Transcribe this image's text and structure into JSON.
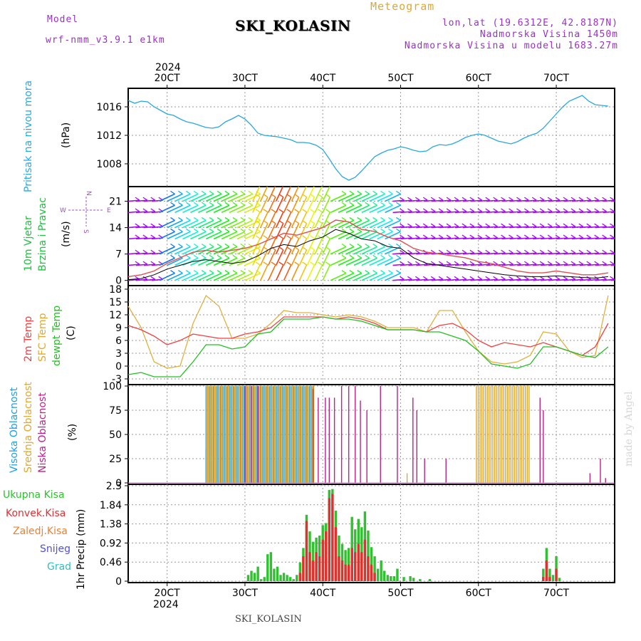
{
  "header": {
    "model_label": "Model",
    "model_name": "wrf-nmm_v3.9.1 e1km",
    "title": "SKI_KOLASIN",
    "meteogram": "Meteogram",
    "lonlat": "lon,lat (19.6312E, 42.8187N)",
    "elevation": "Nadmorska Visina 1450m",
    "model_elevation": "Nadmorska Visina u modelu 1683.27m"
  },
  "colors": {
    "pressure": "#29a8e0",
    "temp2m": "#f04040",
    "sfc": "#e0b040",
    "dew": "#20c020",
    "high_cloud": "#1ca0e8",
    "mid_cloud": "#e0a830",
    "low_cloud": "#c0208a",
    "precip_total": "#30c030",
    "precip_conv": "#e03030",
    "wind_speed": "#000000",
    "gust": "#e05050"
  },
  "footer": {
    "station": "SKI_KOLASIN",
    "credit": "made by Angel"
  },
  "x_axis": {
    "top_year": "2024",
    "bottom_year": "2024",
    "ticks": [
      {
        "hour": 6,
        "label": "20CT"
      },
      {
        "hour": 18,
        "label": "30CT"
      },
      {
        "hour": 30,
        "label": "40CT"
      },
      {
        "hour": 42,
        "label": "50CT"
      },
      {
        "hour": 54,
        "label": "60CT"
      },
      {
        "hour": 66,
        "label": "70CT"
      }
    ]
  },
  "panels": {
    "pressure": {
      "labels": [
        "Pritisak na nivou mora",
        "(hPa)"
      ]
    },
    "wind": {
      "labels": [
        "10m Vjetar",
        "Brzina i Pravac",
        "(m/s)"
      ],
      "compass": [
        "N",
        "E",
        "W",
        "S"
      ]
    },
    "temp": {
      "labels": [
        "2m Temp",
        "SFC Temp",
        "dewpt Temp",
        "(C)"
      ]
    },
    "cloud": {
      "labels": [
        "Visoka Oblacnost",
        "Srednja Oblacnost",
        "Niska Oblacnost",
        "(%)"
      ]
    },
    "precip": {
      "labels": [
        "Ukupna Kisa",
        "Konvek.Kisa",
        "Zaledj.Kisa",
        "Snijeg",
        "Grad",
        "1hr Precip (mm)"
      ]
    }
  },
  "chart_data": [
    {
      "type": "line",
      "title": "",
      "ylabel": "Pritisak na nivou mora (hPa)",
      "ylim": [
        1005,
        1018.4
      ],
      "yticks": [
        1008,
        1012,
        1016
      ],
      "x": [
        0,
        1,
        2,
        3,
        4,
        5,
        6,
        7,
        8,
        9,
        10,
        11,
        12,
        13,
        14,
        15,
        16,
        17,
        18,
        19,
        20,
        21,
        22,
        23,
        24,
        25,
        26,
        27,
        28,
        29,
        30,
        31,
        32,
        33,
        34,
        35,
        36,
        37,
        38,
        39,
        40,
        41,
        42,
        43,
        44,
        45,
        46,
        47,
        48,
        49,
        50,
        51,
        52,
        53,
        54,
        55,
        56,
        57,
        58,
        59,
        60,
        61,
        62,
        63,
        64,
        65,
        66,
        67,
        68,
        69,
        70,
        71,
        72,
        73,
        74
      ],
      "series": [
        {
          "name": "Pritisak na nivou mora",
          "values": [
            1016.9,
            1016.5,
            1016.8,
            1016.7,
            1016.0,
            1015.5,
            1015.0,
            1014.8,
            1014.3,
            1013.9,
            1013.7,
            1013.4,
            1013.1,
            1013.0,
            1013.2,
            1013.9,
            1014.3,
            1014.8,
            1014.3,
            1013.4,
            1012.3,
            1012.0,
            1011.9,
            1011.8,
            1011.6,
            1011.4,
            1011.0,
            1011.0,
            1010.9,
            1010.6,
            1010.0,
            1008.7,
            1007.3,
            1006.2,
            1005.7,
            1006.1,
            1007.0,
            1008.0,
            1009.0,
            1009.5,
            1009.9,
            1010.1,
            1010.4,
            1010.2,
            1009.9,
            1009.7,
            1009.8,
            1010.4,
            1010.7,
            1010.6,
            1010.8,
            1011.2,
            1011.7,
            1012.0,
            1012.2,
            1012.0,
            1011.6,
            1011.2,
            1011.0,
            1010.8,
            1011.1,
            1011.6,
            1012.0,
            1012.3,
            1013.0,
            1014.0,
            1015.0,
            1016.0,
            1016.8,
            1017.2,
            1017.6,
            1016.8,
            1016.3,
            1016.2,
            1016.1
          ]
        }
      ]
    },
    {
      "type": "line",
      "title": "",
      "ylabel": "10m Vjetar Brzina i Pravac (m/s)",
      "ylim": [
        -1,
        24.5
      ],
      "yticks": [
        0,
        7,
        14,
        21
      ],
      "x": [
        0,
        2,
        4,
        6,
        8,
        10,
        12,
        14,
        16,
        18,
        20,
        22,
        24,
        26,
        28,
        30,
        32,
        34,
        36,
        38,
        40,
        42,
        44,
        46,
        48,
        50,
        52,
        54,
        56,
        58,
        60,
        62,
        64,
        66,
        68,
        70,
        72,
        74
      ],
      "series": [
        {
          "name": "Brzina",
          "values": [
            0.2,
            0.5,
            1.5,
            3.0,
            4.0,
            5.0,
            5.5,
            5.0,
            4.5,
            5.0,
            6.5,
            8.5,
            9.5,
            9.0,
            10.5,
            11.5,
            13.5,
            12.5,
            11.0,
            10.5,
            9.0,
            8.5,
            6.0,
            4.5,
            4.0,
            3.5,
            3.0,
            2.5,
            2.0,
            1.5,
            1.2,
            1.0,
            1.0,
            1.2,
            1.0,
            0.8,
            0.6,
            1.0
          ]
        },
        {
          "name": "Udar",
          "values": [
            1.0,
            1.5,
            2.5,
            4.5,
            6.0,
            7.5,
            8.0,
            7.5,
            8.0,
            8.5,
            9.5,
            11.0,
            12.5,
            12.0,
            13.0,
            14.0,
            16.0,
            15.5,
            13.5,
            13.0,
            11.5,
            10.5,
            8.5,
            7.5,
            7.0,
            6.5,
            6.0,
            5.0,
            4.5,
            3.5,
            2.5,
            2.0,
            2.0,
            2.5,
            2.0,
            1.5,
            1.5,
            2.0
          ]
        }
      ]
    },
    {
      "type": "line",
      "title": "",
      "ylabel": "(C)",
      "ylim": [
        -4,
        18.5
      ],
      "yticks": [
        -3,
        0,
        3,
        6,
        9,
        12,
        15,
        18
      ],
      "x": [
        0,
        2,
        4,
        6,
        8,
        10,
        12,
        14,
        16,
        18,
        20,
        22,
        24,
        26,
        28,
        30,
        32,
        34,
        36,
        38,
        40,
        42,
        44,
        46,
        48,
        50,
        52,
        54,
        56,
        58,
        60,
        62,
        64,
        66,
        68,
        70,
        72,
        74
      ],
      "series": [
        {
          "name": "2m Temp",
          "values": [
            9.5,
            8.5,
            7.0,
            5.0,
            6.0,
            7.5,
            7.0,
            6.5,
            6.5,
            7.5,
            8.0,
            9.0,
            11.5,
            11.5,
            11.5,
            11.5,
            11.0,
            11.5,
            11.0,
            10.0,
            8.5,
            8.5,
            8.5,
            8.0,
            9.5,
            10.0,
            8.5,
            6.0,
            4.5,
            5.5,
            5.0,
            4.5,
            5.5,
            4.5,
            3.5,
            2.5,
            4.5,
            10.0
          ]
        },
        {
          "name": "SFC Temp",
          "values": [
            14.0,
            9.0,
            1.0,
            -0.5,
            0.0,
            10.0,
            16.5,
            14.0,
            6.5,
            6.5,
            7.5,
            10.0,
            13.0,
            12.5,
            12.5,
            12.0,
            11.5,
            12.0,
            11.5,
            10.5,
            9.0,
            9.0,
            9.0,
            8.0,
            13.0,
            13.0,
            8.0,
            3.5,
            1.0,
            0.5,
            1.0,
            2.5,
            8.0,
            7.5,
            3.5,
            2.0,
            2.5,
            16.5
          ]
        },
        {
          "name": "dewpt Temp",
          "values": [
            -2.0,
            -1.5,
            -2.5,
            -2.5,
            -2.5,
            1.0,
            5.0,
            5.0,
            4.0,
            4.5,
            7.5,
            8.0,
            11.0,
            11.0,
            11.0,
            11.5,
            11.0,
            11.0,
            10.5,
            9.5,
            8.5,
            8.5,
            8.5,
            8.0,
            8.0,
            7.0,
            6.0,
            3.5,
            0.5,
            0.0,
            -0.5,
            0.5,
            4.5,
            4.5,
            3.5,
            2.5,
            2.0,
            4.5
          ]
        }
      ]
    },
    {
      "type": "bar",
      "title": "",
      "ylabel": "(%)",
      "ylim": [
        0,
        100
      ],
      "yticks": [
        0,
        25,
        50,
        75,
        100
      ],
      "series": [
        {
          "name": "Visoka Oblacnost",
          "segments": [
            [
              12.0,
              28.7,
              100
            ]
          ],
          "sparse": [
            [
              12.0,
              35
            ]
          ]
        },
        {
          "name": "Srednja Oblacnost",
          "segments": [
            [
              12.0,
              28.7,
              100
            ],
            [
              53.6,
              62.0,
              100
            ]
          ],
          "sparse": [
            [
              12.3,
              100
            ],
            [
              12.8,
              100
            ],
            [
              13.4,
              100
            ],
            [
              43.0,
              10
            ]
          ]
        },
        {
          "name": "Niska Oblacnost",
          "sparse": [
            [
              18.0,
              100
            ],
            [
              19.0,
              100
            ],
            [
              20.0,
              100
            ],
            [
              28.5,
              97
            ],
            [
              29.3,
              88
            ],
            [
              30.4,
              88
            ],
            [
              31.0,
              88
            ],
            [
              31.8,
              88
            ],
            [
              32.9,
              100
            ],
            [
              34.0,
              100
            ],
            [
              35.0,
              100
            ],
            [
              35.8,
              85
            ],
            [
              36.8,
              75
            ],
            [
              38.9,
              100
            ],
            [
              41.5,
              100
            ],
            [
              43.9,
              88
            ],
            [
              44.5,
              75
            ],
            [
              45.7,
              25
            ],
            [
              49.0,
              25
            ],
            [
              63.5,
              88
            ],
            [
              64.0,
              75
            ],
            [
              71.2,
              10
            ],
            [
              72.8,
              25
            ],
            [
              73.6,
              5
            ]
          ]
        }
      ]
    },
    {
      "type": "bar",
      "title": "",
      "ylabel": "1hr Precip (mm)",
      "ylim": [
        0,
        2.3
      ],
      "yticks": [
        0,
        0.46,
        0.92,
        1.38,
        1.84,
        2.3
      ],
      "x": [
        18.5,
        19.0,
        19.5,
        20.0,
        20.5,
        21.0,
        21.5,
        22.0,
        22.5,
        23.0,
        23.5,
        24.0,
        24.5,
        25.0,
        25.5,
        26.0,
        26.5,
        27.0,
        27.5,
        28.0,
        28.5,
        29.0,
        29.5,
        30.0,
        30.5,
        31.0,
        31.5,
        32.0,
        32.5,
        33.0,
        33.5,
        34.0,
        34.5,
        35.0,
        35.5,
        36.0,
        36.5,
        37.0,
        37.5,
        38.0,
        38.5,
        39.0,
        39.5,
        40.0,
        40.5,
        41.0,
        41.5,
        42.5,
        43.5,
        44.0,
        45.0,
        46.5,
        64.0,
        64.5,
        65.0,
        65.5,
        66.0,
        66.5
      ],
      "series": [
        {
          "name": "Ukupna Kisa",
          "values": [
            0.15,
            0.25,
            0.2,
            0.35,
            0.05,
            0.1,
            0.65,
            0.7,
            0.3,
            0.35,
            0.15,
            0.2,
            0.15,
            0.1,
            0.05,
            0.15,
            0.45,
            0.8,
            1.6,
            1.2,
            0.95,
            1.05,
            1.1,
            1.35,
            1.4,
            2.2,
            2.22,
            1.7,
            1.1,
            0.9,
            0.75,
            0.8,
            1.55,
            1.25,
            1.5,
            1.3,
            1.68,
            1.22,
            0.82,
            0.6,
            0.3,
            0.5,
            0.25,
            0.15,
            0.12,
            0.12,
            0.3,
            0.1,
            0.12,
            0.08,
            0.05,
            0.05,
            0.3,
            0.8,
            0.3,
            0.15,
            0.6,
            0.08
          ]
        },
        {
          "name": "Konvek.Kisa",
          "values": [
            0,
            0,
            0,
            0,
            0,
            0,
            0,
            0,
            0,
            0,
            0,
            0,
            0,
            0,
            0,
            0,
            0.2,
            0.6,
            1.45,
            0.7,
            0.5,
            0.7,
            0.6,
            1.0,
            1.2,
            2.0,
            2.1,
            1.3,
            0.6,
            0.5,
            0.4,
            0.4,
            0.8,
            0.7,
            0.9,
            0.7,
            1.0,
            0.6,
            0.4,
            0.2,
            0,
            0,
            0,
            0,
            0,
            0,
            0,
            0,
            0,
            0,
            0,
            0,
            0.1,
            0.5,
            0.1,
            0,
            0.3,
            0
          ]
        }
      ]
    }
  ]
}
